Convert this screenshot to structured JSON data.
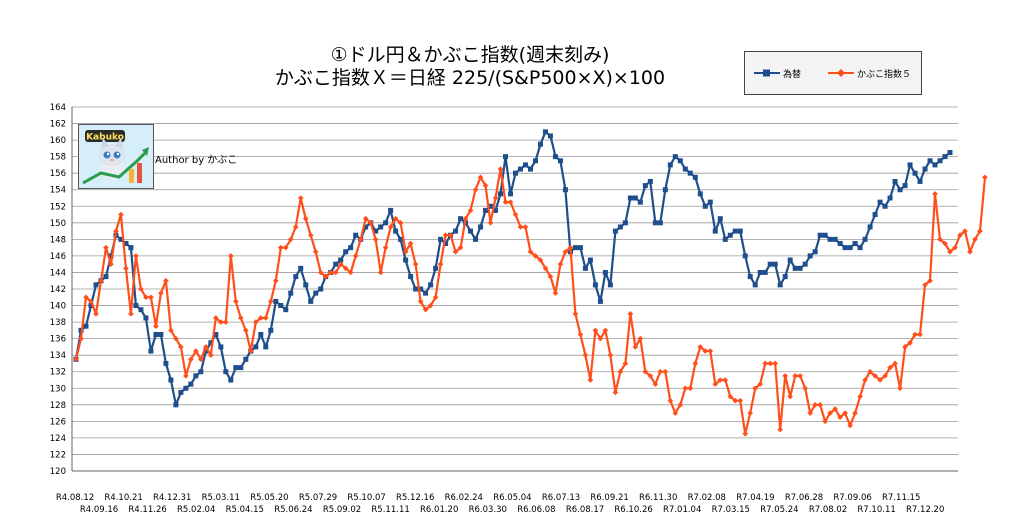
{
  "title_line1": "①ドル円＆かぶこ指数(週末刻み)",
  "title_line2": "かぶこ指数Ｘ＝日経 225/(S&P500×X)×100",
  "author": "Author by かぶこ",
  "badge_text": "Kabuko",
  "colors": {
    "series1": "#1f4e8c",
    "series2": "#ff4f1a",
    "grid": "#9a9a9a",
    "plot_bg": "#ffffff"
  },
  "chart_data": {
    "type": "line",
    "ylim": [
      120,
      164
    ],
    "yticks": [
      120,
      122,
      124,
      126,
      128,
      130,
      132,
      134,
      136,
      138,
      140,
      142,
      144,
      146,
      148,
      150,
      152,
      154,
      156,
      158,
      160,
      162,
      164
    ],
    "xticks_top": [
      "R4.08.12",
      "R4.10.21",
      "R4.12.31",
      "R5.03.11",
      "R5.05.20",
      "R5.07.29",
      "R5.10.07",
      "R5.12.16",
      "R6.02.24",
      "R6.05.04",
      "R6.07.13",
      "R6.09.21",
      "R6.11.30",
      "R7.02.08",
      "R7.04.19",
      "R7.06.28",
      "R7.09.06",
      "R7.11.15"
    ],
    "xticks_bottom": [
      "R4.09.16",
      "R4.11.26",
      "R5.02.04",
      "R5.04.15",
      "R5.06.24",
      "R5.09.02",
      "R5.11.11",
      "R6.01.20",
      "R6.03.30",
      "R6.06.08",
      "R6.08.17",
      "R6.10.26",
      "R7.01.04",
      "R7.03.15",
      "R7.05.24",
      "R7.08.02",
      "R7.10.11",
      "R7.12.20"
    ],
    "grid": "horizontal",
    "legend_position": "top-right",
    "series": [
      {
        "name": "為替",
        "marker": "square",
        "values": [
          133.5,
          137.0,
          137.5,
          140.0,
          142.5,
          143.0,
          143.5,
          146.0,
          148.5,
          148.0,
          147.5,
          147.0,
          140.0,
          139.5,
          138.5,
          134.5,
          136.5,
          136.5,
          133.0,
          131.0,
          128.0,
          129.5,
          130.0,
          130.5,
          131.5,
          132.0,
          134.5,
          135.5,
          136.5,
          135.0,
          132.0,
          131.0,
          132.5,
          132.5,
          133.5,
          134.5,
          135.0,
          136.5,
          135.0,
          137.0,
          140.5,
          140.0,
          139.5,
          141.5,
          143.5,
          144.5,
          142.5,
          140.5,
          141.5,
          142.0,
          143.5,
          144.0,
          145.0,
          145.5,
          146.5,
          147.0,
          148.5,
          148.0,
          149.5,
          150.0,
          149.0,
          149.5,
          150.0,
          151.5,
          149.0,
          148.0,
          145.5,
          143.5,
          142.0,
          142.0,
          141.5,
          142.5,
          144.5,
          148.0,
          147.5,
          148.5,
          149.0,
          150.5,
          150.0,
          149.0,
          148.0,
          149.5,
          151.5,
          152.0,
          151.5,
          153.5,
          158.0,
          153.5,
          156.0,
          156.5,
          157.0,
          156.5,
          157.5,
          159.5,
          161.0,
          160.5,
          158.0,
          157.5,
          154.0,
          146.5,
          147.0,
          147.0,
          144.5,
          145.5,
          142.5,
          140.5,
          144.0,
          142.5,
          149.0,
          149.5,
          150.0,
          153.0,
          153.0,
          152.5,
          154.5,
          155.0,
          150.0,
          150.0,
          154.0,
          157.0,
          158.0,
          157.5,
          156.5,
          156.0,
          155.5,
          153.5,
          152.0,
          152.5,
          149.0,
          150.5,
          148.0,
          148.5,
          149.0,
          149.0,
          146.0,
          143.5,
          142.5,
          144.0,
          144.0,
          145.0,
          145.0,
          142.5,
          143.5,
          145.5,
          144.5,
          144.5,
          145.0,
          146.0,
          146.5,
          148.5,
          148.5,
          148.0,
          148.0,
          147.5,
          147.0,
          147.0,
          147.5,
          147.0,
          148.0,
          149.5,
          151.0,
          152.5,
          152.0,
          153.0,
          155.0,
          154.0,
          154.5,
          157.0,
          156.0,
          155.0,
          156.5,
          157.5,
          157.0,
          157.5,
          158.0,
          158.5
        ]
      },
      {
        "name": "かぶこ指数５",
        "marker": "diamond",
        "values": [
          133.5,
          136.0,
          141.0,
          140.5,
          139.0,
          143.0,
          147.0,
          145.0,
          149.0,
          151.0,
          144.5,
          139.0,
          146.0,
          142.0,
          141.0,
          141.0,
          137.5,
          141.5,
          143.0,
          137.0,
          136.0,
          135.0,
          131.5,
          133.5,
          134.5,
          133.5,
          135.0,
          134.0,
          138.5,
          138.0,
          138.0,
          146.0,
          140.5,
          138.5,
          137.0,
          134.5,
          138.0,
          138.5,
          138.5,
          140.5,
          143.0,
          147.0,
          147.0,
          148.0,
          149.5,
          153.0,
          150.5,
          148.5,
          146.5,
          144.0,
          143.5,
          144.0,
          144.0,
          145.0,
          144.5,
          144.0,
          146.0,
          148.0,
          150.5,
          150.0,
          148.0,
          144.0,
          147.0,
          149.5,
          150.5,
          150.0,
          146.5,
          147.5,
          145.0,
          140.5,
          139.5,
          140.0,
          141.0,
          145.0,
          148.5,
          148.5,
          146.5,
          147.0,
          150.5,
          151.5,
          154.0,
          155.5,
          154.5,
          150.0,
          153.0,
          156.5,
          152.5,
          152.5,
          151.0,
          149.5,
          149.5,
          146.5,
          146.0,
          145.5,
          144.5,
          143.5,
          141.5,
          145.0,
          146.5,
          147.0,
          139.0,
          136.5,
          134.0,
          131.0,
          137.0,
          136.0,
          137.0,
          134.0,
          129.5,
          132.0,
          133.0,
          139.0,
          135.0,
          136.0,
          132.0,
          131.5,
          130.5,
          132.0,
          132.0,
          128.5,
          127.0,
          128.0,
          130.0,
          130.0,
          133.0,
          135.0,
          134.5,
          134.5,
          130.5,
          131.0,
          131.0,
          129.0,
          128.5,
          128.5,
          124.5,
          127.0,
          130.0,
          130.5,
          133.0,
          133.0,
          133.0,
          125.0,
          131.5,
          129.0,
          131.5,
          131.5,
          130.0,
          127.0,
          128.0,
          128.0,
          126.0,
          127.0,
          127.5,
          126.5,
          127.0,
          125.5,
          127.0,
          129.0,
          131.0,
          132.0,
          131.5,
          131.0,
          131.5,
          132.5,
          133.0,
          130.0,
          135.0,
          135.5,
          136.5,
          136.5,
          142.5,
          143.0,
          153.5,
          148.0,
          147.5,
          146.5,
          147.0,
          148.5,
          149.0,
          146.5,
          148.0,
          149.0,
          155.5
        ]
      }
    ]
  }
}
